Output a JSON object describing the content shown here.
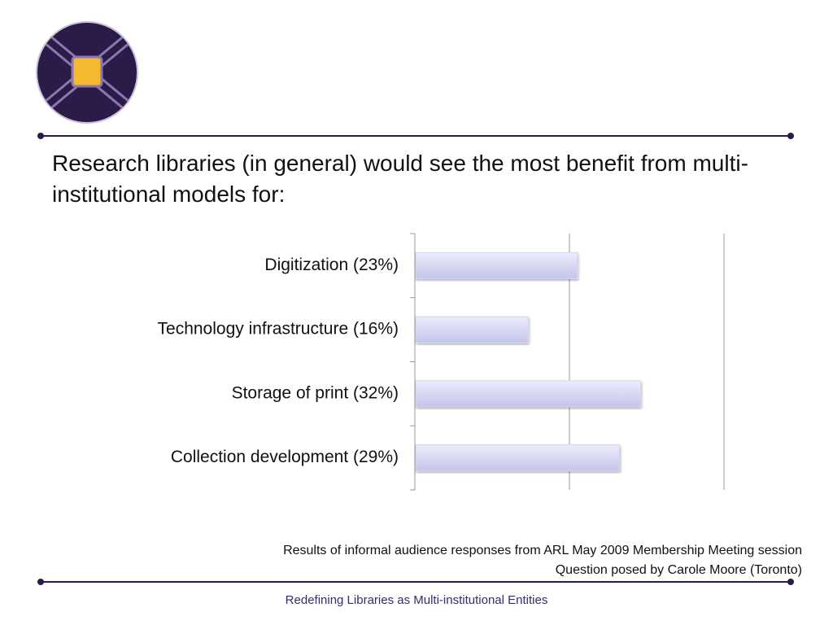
{
  "chart_data": {
    "type": "hbar",
    "title": "Research libraries (in general) would see the most benefit from multi-institutional models for:",
    "categories": [
      "Digitization (23%)",
      "Technology infrastructure (16%)",
      "Storage of print (32%)",
      "Collection development (29%)"
    ],
    "values": [
      23,
      16,
      32,
      29
    ],
    "color": "#d6d6f5",
    "xlim": [
      0,
      44
    ],
    "gridlines": [
      22,
      44
    ],
    "notes": [
      "Results of informal audience responses from ARL May 2009 Membership Meeting session",
      "Question posed by Carole Moore (Toronto)"
    ]
  },
  "footer": "Redefining Libraries as Multi-institutional Entities"
}
